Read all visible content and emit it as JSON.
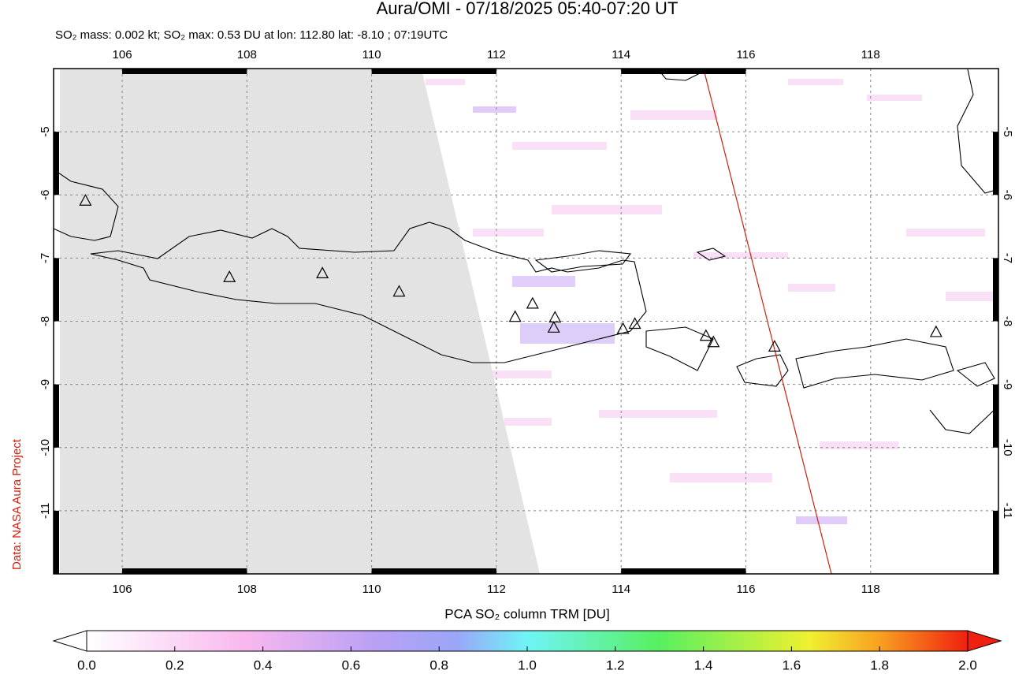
{
  "title": "Aura/OMI - 07/18/2025 05:40-07:20 UT",
  "subtitle": "SO₂ mass: 0.002 kt; SO₂ max: 0.53 DU at lon: 112.80 lat: -8.10 ; 07:19UTC",
  "credit": "Data: NASA Aura Project",
  "map": {
    "xlim": [
      104.9,
      120.05
    ],
    "ylim": [
      -12,
      -4
    ],
    "xticks": [
      106,
      108,
      110,
      112,
      114,
      116,
      118
    ],
    "yticks": [
      -5,
      -6,
      -7,
      -8,
      -9,
      -10,
      -11
    ],
    "grid": true,
    "volcanoes": {
      "lon": [
        105.41,
        107.72,
        109.21,
        110.44,
        112.3,
        112.58,
        112.94,
        112.92,
        114.03,
        114.22,
        115.36,
        115.48,
        116.46,
        119.05
      ],
      "lat": [
        -6.1,
        -7.31,
        -7.25,
        -7.54,
        -7.94,
        -7.73,
        -7.95,
        -8.11,
        -8.13,
        -8.05,
        -8.24,
        -8.34,
        -8.41,
        -8.18
      ]
    }
  },
  "colorbar": {
    "label": "PCA SO₂ column TRM [DU]",
    "lim": [
      0,
      2
    ],
    "ticks": [
      {
        "value": 0,
        "label": "0.0"
      },
      0.2,
      0.4,
      0.6,
      0.8,
      {
        "value": 1,
        "label": "1.0"
      },
      1.2,
      1.4,
      1.6,
      1.8,
      {
        "value": 2,
        "label": "2.0"
      }
    ]
  }
}
